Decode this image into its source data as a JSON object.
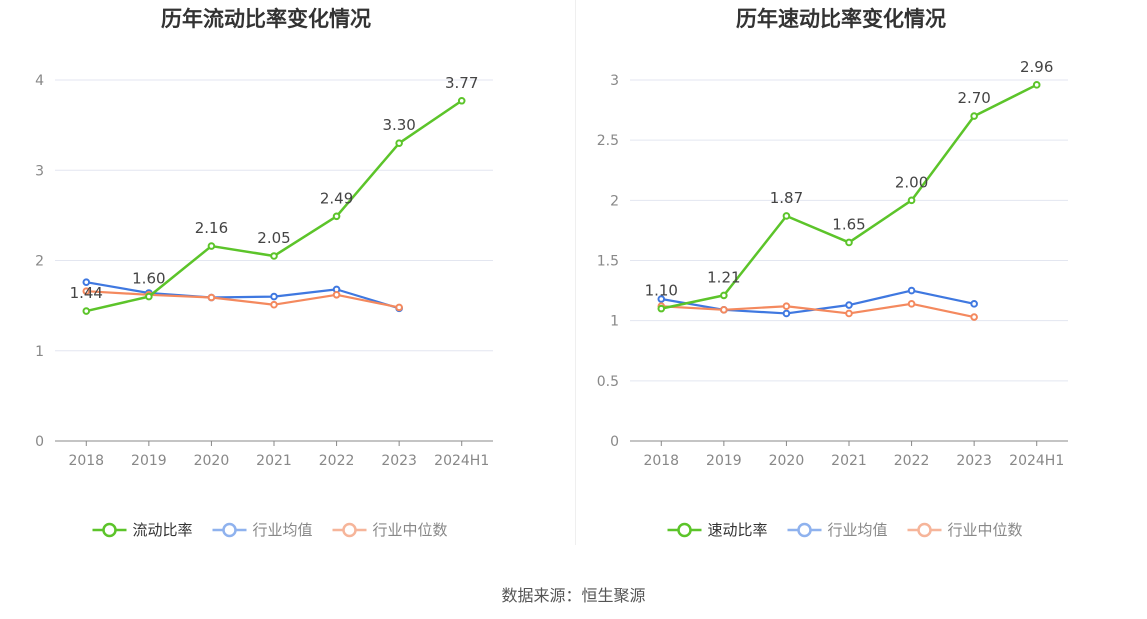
{
  "chart_data": [
    {
      "type": "line",
      "title": "历年流动比率变化情况",
      "categories": [
        "2018",
        "2019",
        "2020",
        "2021",
        "2022",
        "2023",
        "2024H1"
      ],
      "ylim": [
        0,
        4
      ],
      "yticks": [
        "0",
        "1",
        "2",
        "3",
        "4"
      ],
      "series": [
        {
          "name": "流动比率",
          "color": "#5cc42a",
          "values": [
            1.44,
            1.6,
            2.16,
            2.05,
            2.49,
            3.3,
            3.77
          ],
          "labels": [
            "1.44",
            "1.60",
            "2.16",
            "2.05",
            "2.49",
            "3.30",
            "3.77"
          ]
        },
        {
          "name": "行业均值",
          "color": "#3f78e0",
          "values": [
            1.76,
            1.64,
            1.59,
            1.6,
            1.68,
            1.47,
            null
          ]
        },
        {
          "name": "行业中位数",
          "color": "#f4895e",
          "values": [
            1.66,
            1.62,
            1.59,
            1.51,
            1.62,
            1.48,
            null
          ]
        }
      ],
      "grid": true,
      "legend_position": "bottom"
    },
    {
      "type": "line",
      "title": "历年速动比率变化情况",
      "categories": [
        "2018",
        "2019",
        "2020",
        "2021",
        "2022",
        "2023",
        "2024H1"
      ],
      "ylim": [
        0,
        3
      ],
      "yticks": [
        "0",
        "0.5",
        "1",
        "1.5",
        "2",
        "2.5",
        "3"
      ],
      "series": [
        {
          "name": "速动比率",
          "color": "#5cc42a",
          "values": [
            1.1,
            1.21,
            1.87,
            1.65,
            2.0,
            2.7,
            2.96
          ],
          "labels": [
            "1.10",
            "1.21",
            "1.87",
            "1.65",
            "2.00",
            "2.70",
            "2.96"
          ]
        },
        {
          "name": "行业均值",
          "color": "#3f78e0",
          "values": [
            1.18,
            1.09,
            1.06,
            1.13,
            1.25,
            1.14,
            null
          ]
        },
        {
          "name": "行业中位数",
          "color": "#f4895e",
          "values": [
            1.12,
            1.09,
            1.12,
            1.06,
            1.14,
            1.03,
            null
          ]
        }
      ],
      "grid": true,
      "legend_position": "bottom"
    }
  ],
  "source_text": "数据来源：恒生聚源"
}
